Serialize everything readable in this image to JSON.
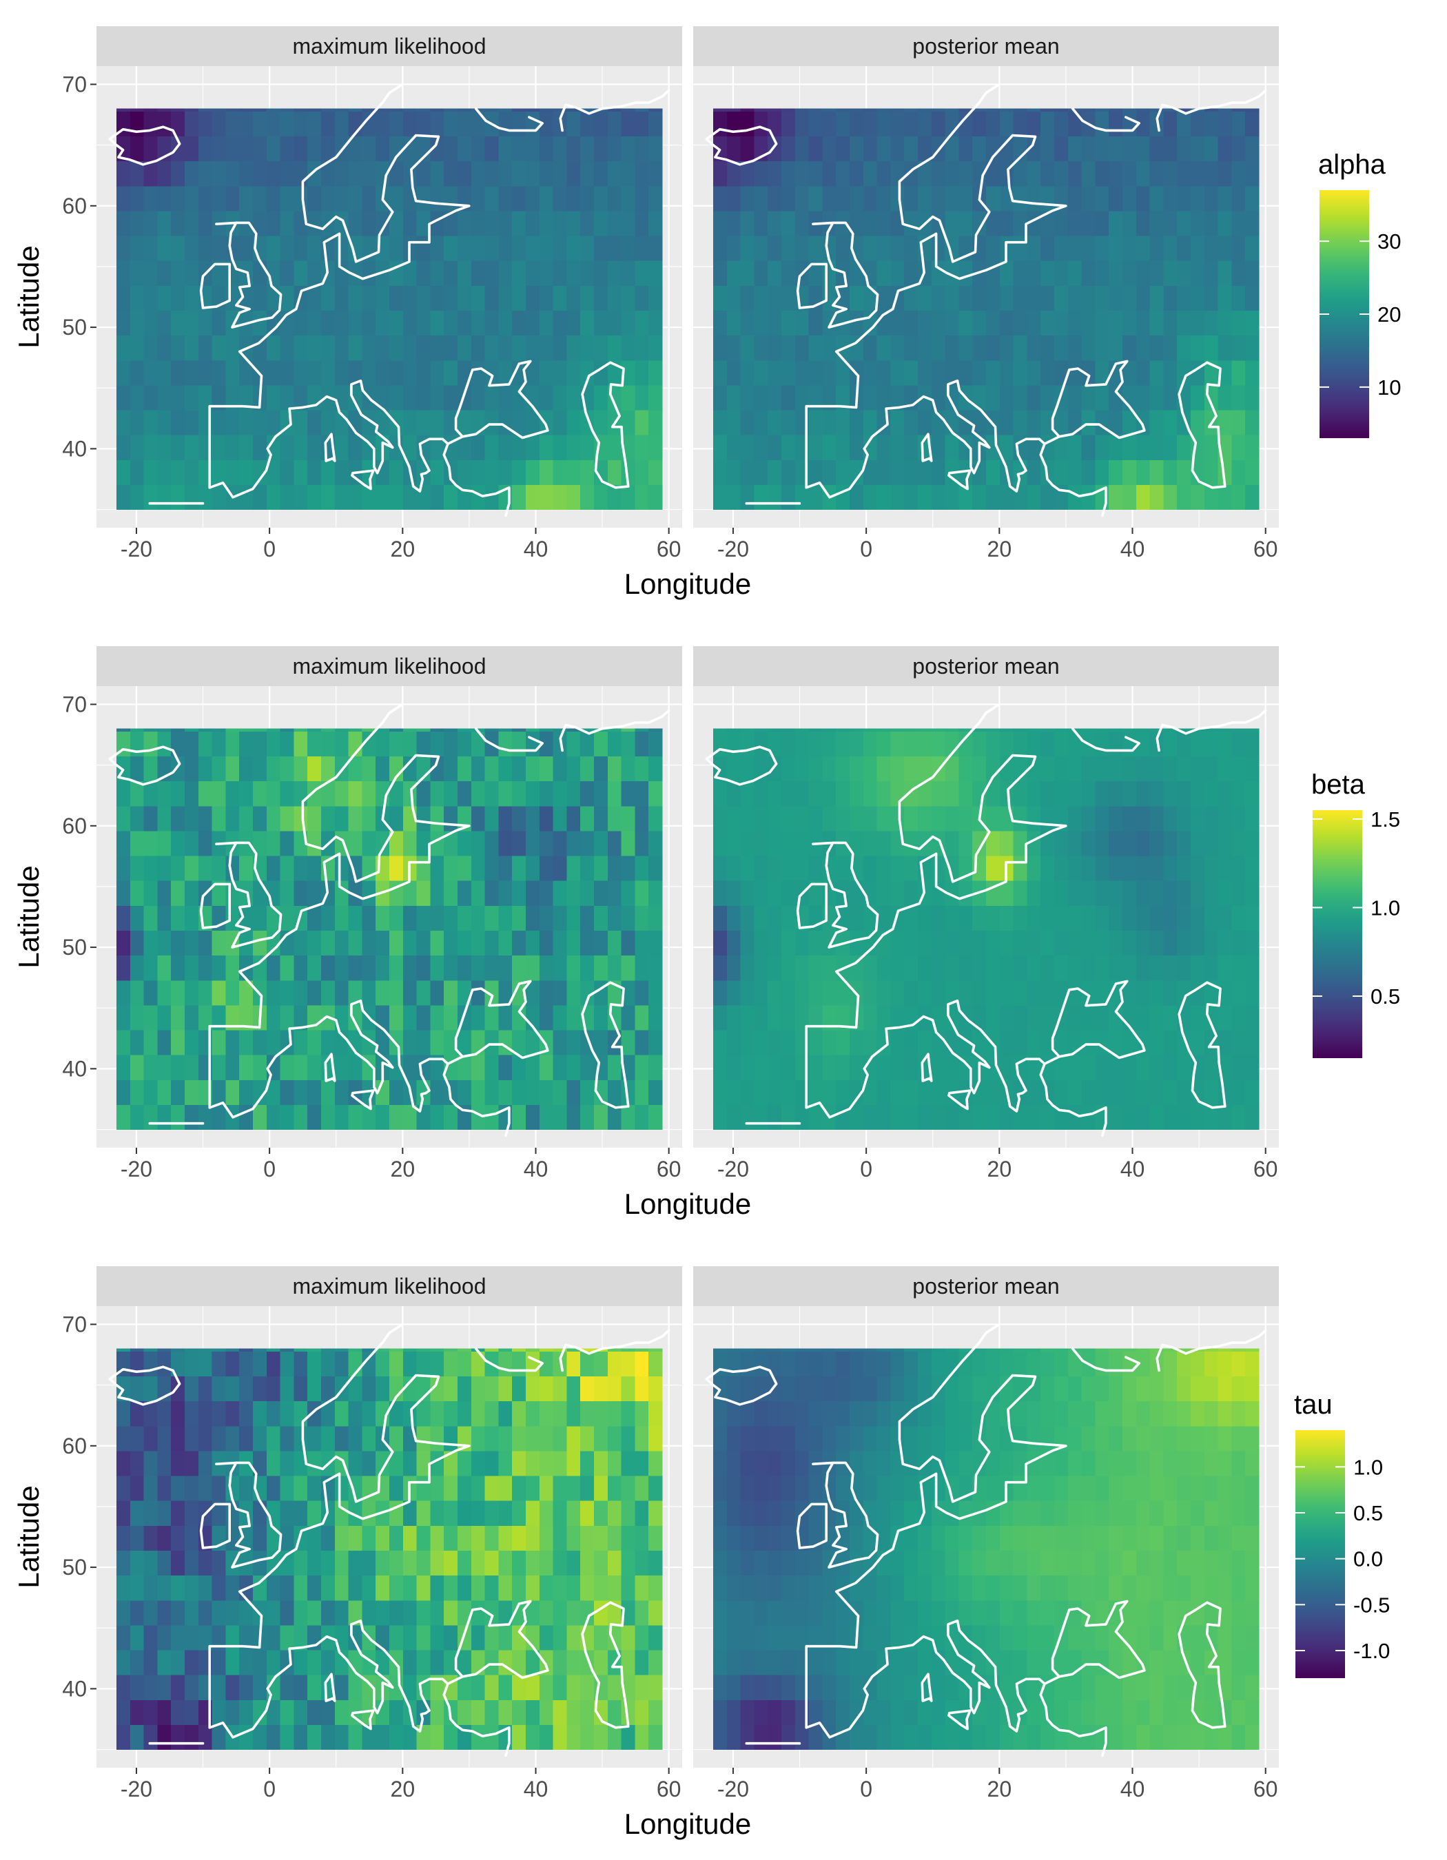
{
  "x_axis_label": "Longitude",
  "y_axis_label": "Latitude",
  "x_ticks": [
    -20,
    0,
    20,
    40,
    60
  ],
  "y_ticks": [
    40,
    50,
    60,
    70
  ],
  "panels": [
    {
      "legend_title": "alpha",
      "legend_range": [
        3,
        37
      ],
      "legend_breaks": [
        10,
        20,
        30
      ],
      "facets": [
        {
          "label": "maximum likelihood",
          "style": "sharp"
        },
        {
          "label": "posterior mean",
          "style": "sharp"
        }
      ]
    },
    {
      "legend_title": "beta",
      "legend_range": [
        0.15,
        1.55
      ],
      "legend_breaks": [
        0.5,
        1.0,
        1.5
      ],
      "facets": [
        {
          "label": "maximum likelihood",
          "style": "noisy"
        },
        {
          "label": "posterior mean",
          "style": "smooth"
        }
      ]
    },
    {
      "legend_title": "tau",
      "legend_range": [
        -1.3,
        1.4
      ],
      "legend_breaks": [
        -1.0,
        -0.5,
        0.0,
        0.5,
        1.0
      ],
      "facets": [
        {
          "label": "maximum likelihood",
          "style": "noisy"
        },
        {
          "label": "posterior mean",
          "style": "smooth"
        }
      ]
    }
  ],
  "chart_data": {
    "type": "heatmap",
    "description_fields": [
      "alpha",
      "beta",
      "tau"
    ],
    "x": {
      "label": "Longitude",
      "range": [
        -23,
        59
      ]
    },
    "y": {
      "label": "Latitude",
      "range": [
        35,
        68
      ]
    },
    "colormap": "viridis",
    "grid": true,
    "alpha": {
      "low_regions": [
        "Iceland / NW Atlantic (~3-8)"
      ],
      "high_regions": [
        "Caspian / Middle East (~30-37)",
        "Southern Europe & N. Africa (~25)"
      ],
      "typical": 15
    },
    "beta": {
      "low_regions": [
        "Atlantic off Iberia near -22,50 (~0.2)",
        "Russia ~40,58 (~0.4)"
      ],
      "high_regions": [
        "Baltic near 20,57 (~1.5)",
        "North Sea / Norway (~1.2)"
      ],
      "typical": 0.9
    },
    "tau": {
      "low_regions": [
        "Atlantic SW of Iberia (~-1.2)",
        "N. Atlantic / Iceland (~-0.6)"
      ],
      "high_regions": [
        "NE Russia ~55,66 (~1.3)",
        "Central/Eastern Europe belt (~0.8)"
      ],
      "typical": 0.2
    }
  }
}
